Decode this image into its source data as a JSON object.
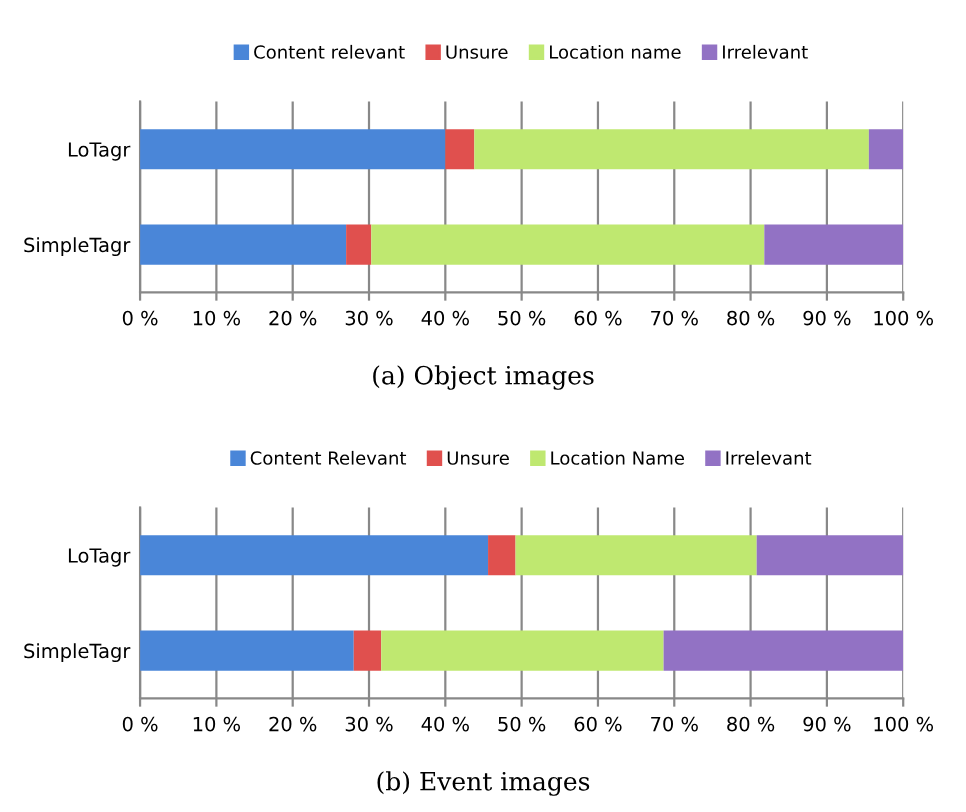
{
  "chart_data": [
    {
      "type": "bar",
      "orientation": "horizontal",
      "stacked": true,
      "categories": [
        "LoTagr",
        "SimpleTagr"
      ],
      "series": [
        {
          "name": "Content relevant",
          "color": "#4a86d8",
          "values": [
            40,
            27
          ]
        },
        {
          "name": "Unsure",
          "color": "#e0504e",
          "values": [
            3.8,
            3.3
          ]
        },
        {
          "name": "Location name",
          "color": "#bfe870",
          "values": [
            51.7,
            51.5
          ]
        },
        {
          "name": "Irrelevant",
          "color": "#9272c4",
          "values": [
            4.5,
            18.2
          ]
        }
      ],
      "xlim": [
        0,
        100
      ],
      "xticks": [
        {
          "value": 0,
          "label": "0 %"
        },
        {
          "value": 10,
          "label": "10 %"
        },
        {
          "value": 20,
          "label": "20 %"
        },
        {
          "value": 30,
          "label": "30 %"
        },
        {
          "value": 40,
          "label": "40 %"
        },
        {
          "value": 50,
          "label": "50 %"
        },
        {
          "value": 60,
          "label": "60 %"
        },
        {
          "value": 70,
          "label": "70 %"
        },
        {
          "value": 80,
          "label": "80 %"
        },
        {
          "value": 90,
          "label": "90 %"
        },
        {
          "value": 100,
          "label": "100 %"
        }
      ],
      "grid": "x",
      "legend": "top",
      "annotations": [
        "(a) Object images"
      ]
    },
    {
      "type": "bar",
      "orientation": "horizontal",
      "stacked": true,
      "categories": [
        "LoTagr",
        "SimpleTagr"
      ],
      "series": [
        {
          "name": "Content Relevant",
          "color": "#4a86d8",
          "values": [
            45.6,
            28
          ]
        },
        {
          "name": "Unsure",
          "color": "#e0504e",
          "values": [
            3.6,
            3.6
          ]
        },
        {
          "name": "Location Name",
          "color": "#bfe870",
          "values": [
            31.6,
            37
          ]
        },
        {
          "name": "Irrelevant",
          "color": "#9272c4",
          "values": [
            19.2,
            31.4
          ]
        }
      ],
      "xlim": [
        0,
        100
      ],
      "xticks": [
        {
          "value": 0,
          "label": "0 %"
        },
        {
          "value": 10,
          "label": "10 %"
        },
        {
          "value": 20,
          "label": "20 %"
        },
        {
          "value": 30,
          "label": "30 %"
        },
        {
          "value": 40,
          "label": "40 %"
        },
        {
          "value": 50,
          "label": "50 %"
        },
        {
          "value": 60,
          "label": "60 %"
        },
        {
          "value": 70,
          "label": "70 %"
        },
        {
          "value": 80,
          "label": "80 %"
        },
        {
          "value": 90,
          "label": "90 %"
        },
        {
          "value": 100,
          "label": "100 %"
        }
      ],
      "grid": "x",
      "legend": "top",
      "annotations": [
        "(b) Event images"
      ]
    }
  ]
}
